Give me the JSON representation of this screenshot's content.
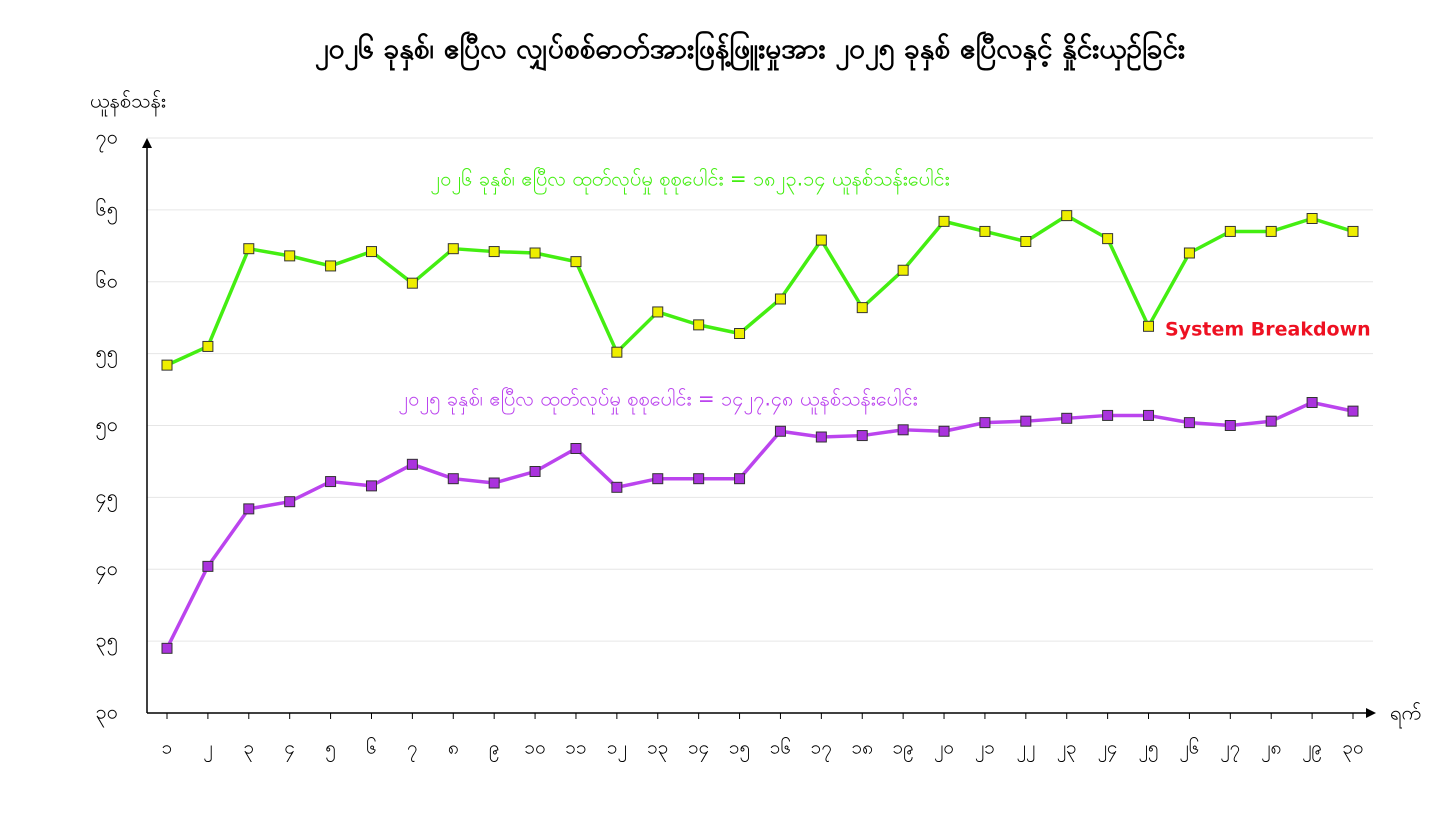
{
  "chart_data": {
    "type": "line",
    "title": "၂၀၂၆ ခုနှစ်၊ ဧပြီလ လျှပ်စစ်ဓာတ်အားဖြန့်ဖြူးမှုအား ၂၀၂၅ ခုနှစ် ဧပြီလနှင့် နှိုင်းယှဉ်ခြင်း",
    "y_label": "ယူနစ်သန်း",
    "x_label": "ရက်",
    "categories": [
      "၁",
      "၂",
      "၃",
      "၄",
      "၅",
      "၆",
      "၇",
      "၈",
      "၉",
      "၁၀",
      "၁၁",
      "၁၂",
      "၁၃",
      "၁၄",
      "၁၅",
      "၁၆",
      "၁၇",
      "၁၈",
      "၁၉",
      "၂၀",
      "၂၁",
      "၂၂",
      "၂၃",
      "၂၄",
      "၂၅",
      "၂၆",
      "၂၇",
      "၂၈",
      "၂၉",
      "၃၀"
    ],
    "series": [
      {
        "color": "#44ee11",
        "marker_color": "#eeee00",
        "values": [
          54.2,
          55.5,
          62.3,
          61.8,
          61.1,
          62.1,
          59.9,
          62.3,
          62.1,
          62.0,
          61.4,
          55.1,
          57.9,
          57.0,
          56.4,
          58.8,
          62.9,
          58.2,
          60.8,
          64.2,
          63.5,
          62.8,
          64.6,
          63.0,
          56.9,
          62.0,
          63.5,
          63.5,
          64.4,
          63.5
        ]
      },
      {
        "color": "#bb44ee",
        "marker_color": "#aa33dd",
        "values": [
          34.5,
          40.2,
          44.2,
          44.7,
          46.1,
          45.8,
          47.3,
          46.3,
          46.0,
          46.8,
          48.4,
          45.7,
          46.3,
          46.3,
          46.3,
          49.6,
          49.2,
          49.3,
          49.7,
          49.6,
          50.2,
          50.3,
          50.5,
          50.7,
          50.7,
          50.2,
          50.0,
          50.3,
          51.6,
          51.0
        ]
      }
    ],
    "annotations": [
      "၂၀၂၆ ခုနှစ်၊ ဧပြီလ ထုတ်လုပ်မှု စုစုပေါင်း = ၁၈၂၃.၁၄ ယူနစ်သန်းပေါင်း",
      "၂၀၂၅ ခုနှစ်၊ ဧပြီလ ထုတ်လုပ်မှု စုစုပေါင်း = ၁၄၂၇.၄၈ ယူနစ်သန်းပေါင်း",
      "System Breakdown"
    ],
    "annotation_colors": [
      "#44ee11",
      "#bb44ee",
      "#ee1122"
    ],
    "ylim": [
      30,
      70
    ],
    "yticks": [
      {
        "value": 30,
        "label": "၃၀"
      },
      {
        "value": 35,
        "label": "၃၅"
      },
      {
        "value": 40,
        "label": "၄၀"
      },
      {
        "value": 45,
        "label": "၄၅"
      },
      {
        "value": 50,
        "label": "၅၀"
      },
      {
        "value": 55,
        "label": "၅၅"
      },
      {
        "value": 60,
        "label": "၆၀"
      },
      {
        "value": 65,
        "label": "၆၅"
      },
      {
        "value": 70,
        "label": "၇၀"
      }
    ],
    "grid": true
  }
}
